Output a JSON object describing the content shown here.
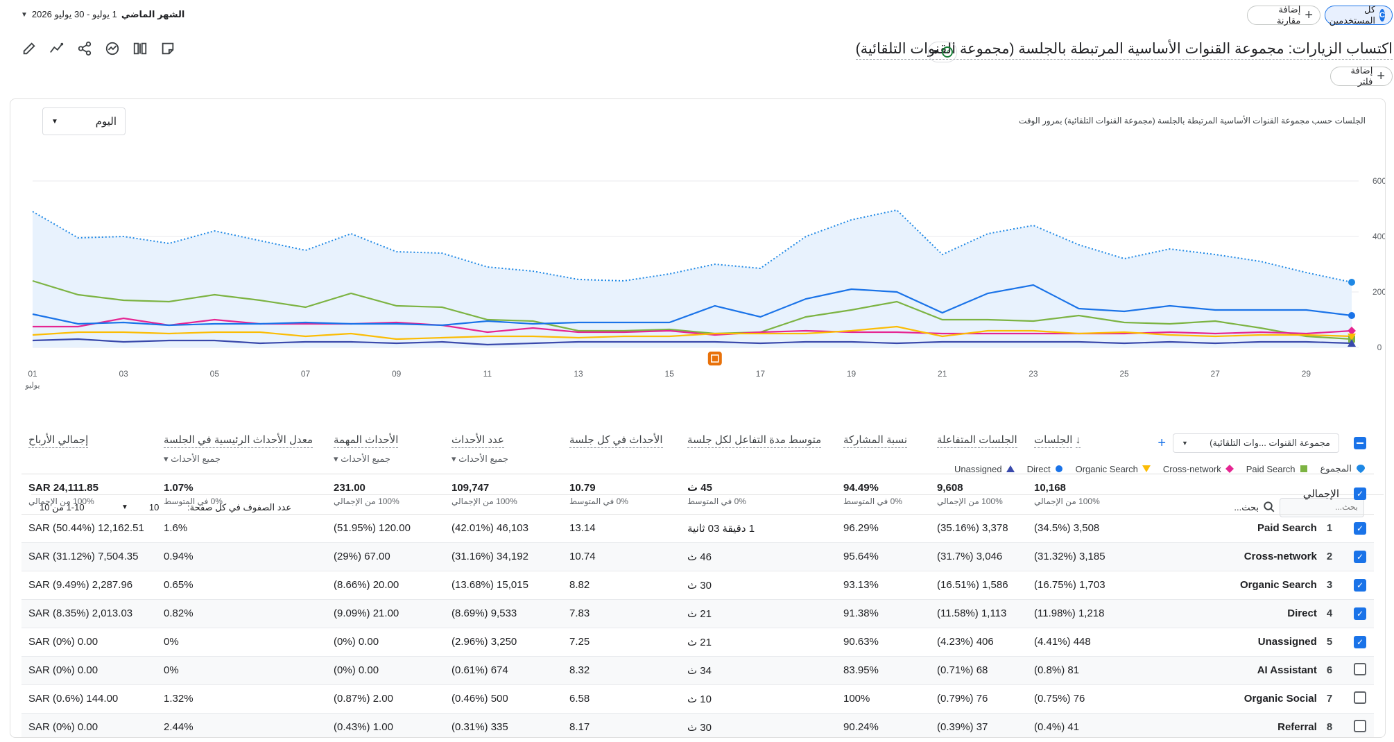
{
  "top_bar": {
    "all_users": "كل المستخدمين",
    "add_comparison": "إضافة مقارنة",
    "date_range_label": "الشهر الماضي",
    "date_range_value": "1 يوليو - 30 يوليو 2026"
  },
  "header": {
    "title": "اكتساب الزيارات: مجموعة القنوات الأساسية المرتبطة بالجلسة (مجموعة القنوات التلقائية)",
    "add_filter": "إضافة فلتر"
  },
  "chart_card": {
    "subtitle": "الجلسات حسب مجموعة القنوات الأساسية المرتبطة بالجلسة (مجموعة القنوات التلقائية) بمرور الوقت",
    "granularity": "اليوم"
  },
  "chart_data": {
    "type": "line",
    "x": [
      1,
      2,
      3,
      4,
      5,
      6,
      7,
      8,
      9,
      10,
      11,
      12,
      13,
      14,
      15,
      16,
      17,
      18,
      19,
      20,
      21,
      22,
      23,
      24,
      25,
      26,
      27,
      28,
      29,
      30
    ],
    "x_tick_labels": [
      "01",
      "03",
      "05",
      "07",
      "09",
      "11",
      "13",
      "15",
      "17",
      "19",
      "21",
      "23",
      "25",
      "27",
      "29"
    ],
    "x_tick_values": [
      1,
      3,
      5,
      7,
      9,
      11,
      13,
      15,
      17,
      19,
      21,
      23,
      25,
      27,
      29
    ],
    "x_month": "يوليو",
    "y_ticks": [
      "0",
      "200",
      "400",
      "600"
    ],
    "ylim": [
      0,
      600
    ],
    "legend_position": "bottom-right",
    "series": [
      {
        "name": "المجموع",
        "color": "#4285f4",
        "values": [
          490,
          395,
          400,
          375,
          420,
          385,
          350,
          410,
          345,
          340,
          290,
          275,
          245,
          240,
          265,
          300,
          285,
          400,
          460,
          495,
          335,
          410,
          440,
          370,
          320,
          355,
          335,
          310,
          270,
          235
        ]
      },
      {
        "name": "Paid Search",
        "color": "#7cb342",
        "values": [
          240,
          190,
          170,
          165,
          190,
          170,
          145,
          195,
          150,
          145,
          100,
          95,
          60,
          60,
          65,
          50,
          55,
          110,
          135,
          165,
          100,
          100,
          95,
          115,
          90,
          85,
          95,
          70,
          40,
          30
        ]
      },
      {
        "name": "Cross-network",
        "color": "#e52592",
        "values": [
          75,
          75,
          105,
          80,
          100,
          85,
          85,
          85,
          90,
          80,
          55,
          70,
          55,
          55,
          60,
          45,
          55,
          60,
          55,
          55,
          50,
          50,
          50,
          50,
          50,
          55,
          50,
          55,
          50,
          60
        ]
      },
      {
        "name": "Organic Search",
        "color": "#fbbc04",
        "values": [
          45,
          55,
          55,
          50,
          55,
          55,
          40,
          50,
          30,
          35,
          40,
          40,
          35,
          40,
          40,
          50,
          50,
          50,
          60,
          75,
          40,
          60,
          60,
          50,
          55,
          45,
          40,
          45,
          45,
          40
        ]
      },
      {
        "name": "Direct",
        "color": "#1a73e8",
        "values": [
          120,
          85,
          90,
          80,
          85,
          85,
          90,
          85,
          85,
          80,
          95,
          85,
          90,
          90,
          90,
          150,
          110,
          175,
          210,
          200,
          125,
          195,
          225,
          140,
          130,
          150,
          135,
          135,
          135,
          115
        ]
      },
      {
        "name": "Unassigned",
        "color": "#3949ab",
        "values": [
          25,
          30,
          20,
          25,
          25,
          15,
          20,
          20,
          15,
          20,
          10,
          15,
          20,
          20,
          20,
          20,
          15,
          20,
          20,
          15,
          20,
          20,
          20,
          20,
          15,
          20,
          15,
          20,
          20,
          15
        ]
      }
    ]
  },
  "table_toolbar": {
    "search_placeholder": "بحث...",
    "rows_per_page_label": "عدد الصفوف في كل صفحة:",
    "rows_per_page": "10",
    "pagination": "1-10 من 10"
  },
  "table": {
    "dimension_header": "مجموعة القنوات ...وات التلقائية)",
    "headers": [
      {
        "label": "الجلسات",
        "sub": ""
      },
      {
        "label": "الجلسات المتفاعلة",
        "sub": ""
      },
      {
        "label": "نسبة المشاركة",
        "sub": ""
      },
      {
        "label": "متوسط مدة التفاعل لكل جلسة",
        "sub": ""
      },
      {
        "label": "الأحداث في كل جلسة",
        "sub": ""
      },
      {
        "label": "عدد الأحداث",
        "sub": "جميع الأحداث"
      },
      {
        "label": "الأحداث المهمة",
        "sub": "جميع الأحداث"
      },
      {
        "label": "معدل الأحداث الرئيسية في الجلسة",
        "sub": "جميع الأحداث"
      },
      {
        "label": "إجمالي الأرباح",
        "sub": ""
      }
    ],
    "total": {
      "label": "الإجمالي",
      "values": [
        "10,168",
        "9,608",
        "94.49%",
        "45 ث",
        "10.79",
        "109,747",
        "231.00",
        "1.07%",
        "SAR 24,111.85"
      ],
      "subs": [
        "100% من الإجمالي",
        "100% من الإجمالي",
        "0% في المتوسط",
        "0% في المتوسط",
        "0% في المتوسط",
        "100% من الإجمالي",
        "100% من الإجمالي",
        "0% في المتوسط",
        "100% من الإجمالي"
      ]
    },
    "rows": [
      {
        "num": "1",
        "name": "Paid Search",
        "checked": true,
        "values": [
          "3,508 (34.5%)",
          "3,378 (35.16%)",
          "96.29%",
          "1 دقيقة 03 ثانية",
          "13.14",
          "46,103 (42.01%)",
          "120.00 (51.95%)",
          "1.6%",
          "12,162.51 (50.44%) SAR"
        ]
      },
      {
        "num": "2",
        "name": "Cross-network",
        "checked": true,
        "values": [
          "3,185 (31.32%)",
          "3,046 (31.7%)",
          "95.64%",
          "46 ث",
          "10.74",
          "34,192 (31.16%)",
          "67.00 (29%)",
          "0.94%",
          "7,504.35 (31.12%) SAR"
        ]
      },
      {
        "num": "3",
        "name": "Organic Search",
        "checked": true,
        "values": [
          "1,703 (16.75%)",
          "1,586 (16.51%)",
          "93.13%",
          "30 ث",
          "8.82",
          "15,015 (13.68%)",
          "20.00 (8.66%)",
          "0.65%",
          "2,287.96 (9.49%) SAR"
        ]
      },
      {
        "num": "4",
        "name": "Direct",
        "checked": true,
        "values": [
          "1,218 (11.98%)",
          "1,113 (11.58%)",
          "91.38%",
          "21 ث",
          "7.83",
          "9,533 (8.69%)",
          "21.00 (9.09%)",
          "0.82%",
          "2,013.03 (8.35%) SAR"
        ]
      },
      {
        "num": "5",
        "name": "Unassigned",
        "checked": true,
        "values": [
          "448 (4.41%)",
          "406 (4.23%)",
          "90.63%",
          "21 ث",
          "7.25",
          "3,250 (2.96%)",
          "0.00 (0%)",
          "0%",
          "0.00 (0%) SAR"
        ]
      },
      {
        "num": "6",
        "name": "AI Assistant",
        "checked": false,
        "values": [
          "81 (0.8%)",
          "68 (0.71%)",
          "83.95%",
          "34 ث",
          "8.32",
          "674 (0.61%)",
          "0.00 (0%)",
          "0%",
          "0.00 (0%) SAR"
        ]
      },
      {
        "num": "7",
        "name": "Organic Social",
        "checked": false,
        "values": [
          "76 (0.75%)",
          "76 (0.79%)",
          "100%",
          "10 ث",
          "6.58",
          "500 (0.46%)",
          "2.00 (0.87%)",
          "1.32%",
          "144.00 (0.6%) SAR"
        ]
      },
      {
        "num": "8",
        "name": "Referral",
        "checked": false,
        "values": [
          "41 (0.4%)",
          "37 (0.39%)",
          "90.24%",
          "30 ث",
          "8.17",
          "335 (0.31%)",
          "1.00 (0.43%)",
          "2.44%",
          "0.00 (0%) SAR"
        ]
      }
    ]
  }
}
